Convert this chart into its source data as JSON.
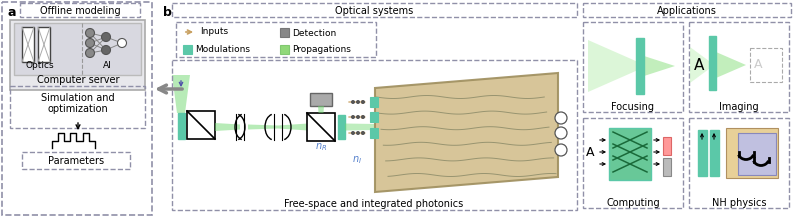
{
  "bg_color": "#ffffff",
  "border_color": "#9090a8",
  "teal_color": "#5bc8a8",
  "green_fill": "#a8e0a0",
  "dark_gray": "#555555",
  "label_offline": "Offline modeling",
  "label_optical": "Optical systems",
  "label_applications": "Applications",
  "label_optics": "Optics",
  "label_ai": "AI",
  "label_computer": "Computer server",
  "label_parameters": "Parameters",
  "label_freespace": "Free-space and integrated photonics",
  "label_focusing": "Focusing",
  "label_imaging": "Imaging",
  "label_computing": "Computing",
  "label_nhphysics": "NH physics",
  "legend_inputs": "Inputs",
  "legend_modulations": "Modulations",
  "legend_detection": "Detection",
  "legend_propagations": "Propagations",
  "arrow_orange": "#c8a060",
  "chip_fill": "#d4c090",
  "chip_edge": "#a09060"
}
